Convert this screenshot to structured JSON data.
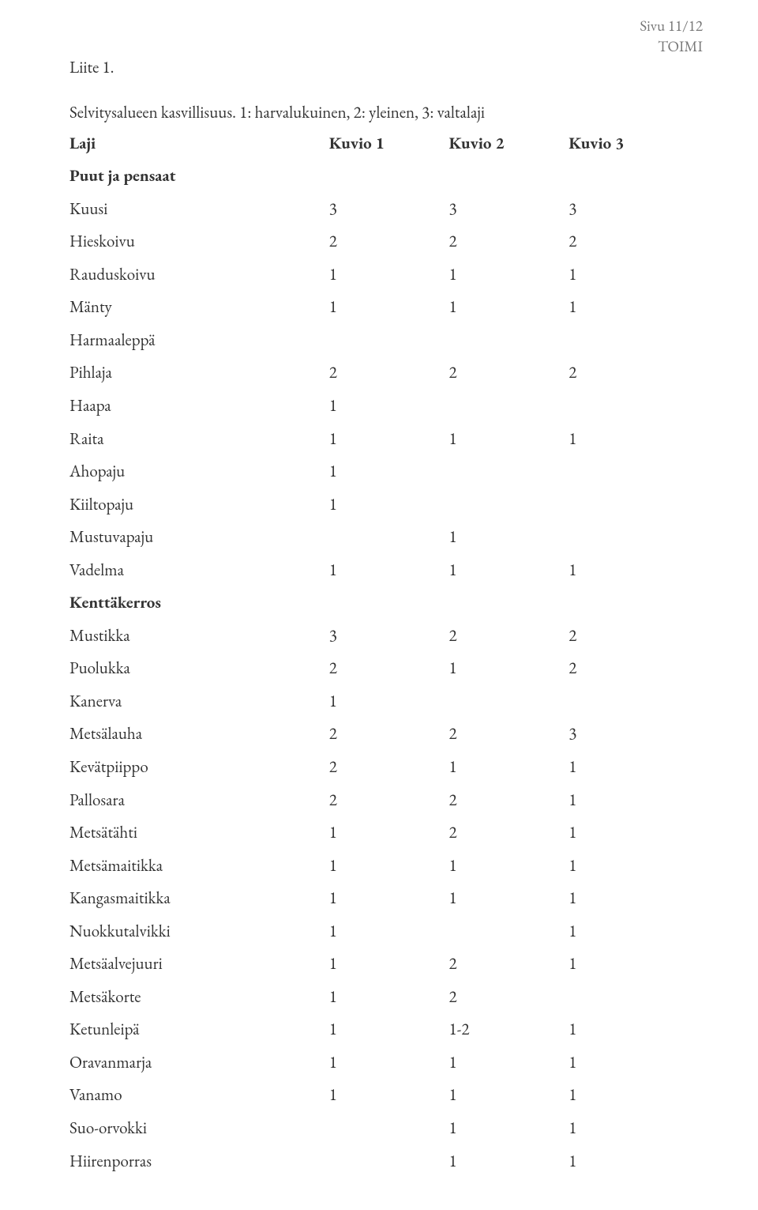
{
  "header": {
    "page_indicator": "Sivu 11/12",
    "doc_label": "TOIMI"
  },
  "liite_label": "Liite 1.",
  "intro_text": "Selvitysalueen kasvillisuus. 1: harvalukuinen, 2: yleinen, 3: valtalaji",
  "cols": {
    "laji": "Laji",
    "k1": "Kuvio 1",
    "k2": "Kuvio 2",
    "k3": "Kuvio 3"
  },
  "section1": "Puut ja pensaat",
  "rows1": [
    {
      "name": "Kuusi",
      "v": [
        "3",
        "3",
        "3"
      ]
    },
    {
      "name": "Hieskoivu",
      "v": [
        "2",
        "2",
        "2"
      ]
    },
    {
      "name": "Rauduskoivu",
      "v": [
        "1",
        "1",
        "1"
      ]
    },
    {
      "name": "Mänty",
      "v": [
        "1",
        "1",
        "1"
      ]
    },
    {
      "name": "Harmaaleppä",
      "v": [
        "",
        "",
        ""
      ]
    },
    {
      "name": "Pihlaja",
      "v": [
        "2",
        "2",
        "2"
      ]
    },
    {
      "name": "Haapa",
      "v": [
        "1",
        "",
        ""
      ]
    },
    {
      "name": "Raita",
      "v": [
        "1",
        "1",
        "1"
      ]
    },
    {
      "name": "Ahopaju",
      "v": [
        "1",
        "",
        ""
      ]
    },
    {
      "name": "Kiiltopaju",
      "v": [
        "1",
        "",
        ""
      ]
    },
    {
      "name": "Mustuvapaju",
      "v": [
        "",
        "1",
        ""
      ]
    },
    {
      "name": "Vadelma",
      "v": [
        "1",
        "1",
        "1"
      ]
    }
  ],
  "section2": "Kenttäkerros",
  "rows2": [
    {
      "name": "Mustikka",
      "v": [
        "3",
        "2",
        "2"
      ]
    },
    {
      "name": "Puolukka",
      "v": [
        "2",
        "1",
        "2"
      ]
    },
    {
      "name": "Kanerva",
      "v": [
        "1",
        "",
        ""
      ]
    },
    {
      "name": "Metsälauha",
      "v": [
        "2",
        "2",
        "3"
      ]
    },
    {
      "name": "Kevätpiippo",
      "v": [
        "2",
        "1",
        "1"
      ]
    },
    {
      "name": "Pallosara",
      "v": [
        "2",
        "2",
        "1"
      ]
    },
    {
      "name": "Metsätähti",
      "v": [
        "1",
        "2",
        "1"
      ]
    },
    {
      "name": "Metsämaitikka",
      "v": [
        "1",
        "1",
        "1"
      ]
    },
    {
      "name": "Kangasmaitikka",
      "v": [
        "1",
        "1",
        "1"
      ]
    },
    {
      "name": "Nuokkutalvikki",
      "v": [
        "1",
        "",
        "1"
      ]
    },
    {
      "name": "Metsäalvejuuri",
      "v": [
        "1",
        "2",
        "1"
      ]
    },
    {
      "name": "Metsäkorte",
      "v": [
        "1",
        "2",
        ""
      ]
    },
    {
      "name": "Ketunleipä",
      "v": [
        "1",
        "1-2",
        "1"
      ]
    },
    {
      "name": "Oravanmarja",
      "v": [
        "1",
        "1",
        "1"
      ]
    },
    {
      "name": "Vanamo",
      "v": [
        "1",
        "1",
        "1"
      ]
    },
    {
      "name": "Suo-orvokki",
      "v": [
        "",
        "1",
        "1"
      ]
    },
    {
      "name": "Hiirenporras",
      "v": [
        "",
        "1",
        "1"
      ]
    }
  ]
}
